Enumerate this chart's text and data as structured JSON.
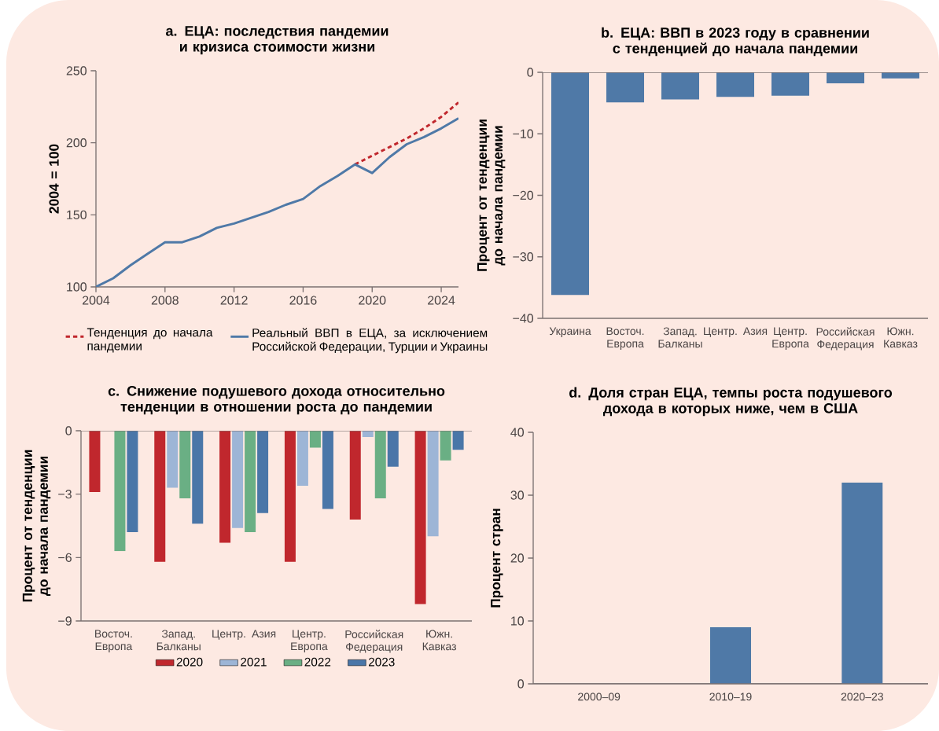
{
  "chart_data": [
    {
      "type": "line",
      "title": "a. ЕЦА: последствия пандемии и кризиса стоимости жизни",
      "ylabel": "2004 = 100",
      "xlim": [
        2004,
        2025
      ],
      "xticks": [
        2004,
        2008,
        2012,
        2016,
        2020,
        2024
      ],
      "ylim": [
        100,
        250
      ],
      "yticks": [
        100,
        150,
        200,
        250
      ],
      "legend": "bottom",
      "series": [
        {
          "name": "Тенденция до начала пандемии",
          "color": "#c0272d",
          "line_style": "dashed",
          "x": [
            2019,
            2020,
            2021,
            2022,
            2023,
            2024,
            2025
          ],
          "values": [
            185,
            191,
            197,
            203,
            210,
            218,
            228
          ]
        },
        {
          "name": "Реальный ВВП в ЕЦА, за исключением Российской Федерации, Турции и Украины",
          "color": "#4f79a7",
          "line_style": "solid",
          "x": [
            2004,
            2005,
            2006,
            2007,
            2008,
            2009,
            2010,
            2011,
            2012,
            2013,
            2014,
            2015,
            2016,
            2017,
            2018,
            2019,
            2020,
            2021,
            2022,
            2023,
            2024,
            2025
          ],
          "values": [
            100,
            106,
            115,
            123,
            131,
            131,
            135,
            141,
            144,
            148,
            152,
            157,
            161,
            170,
            177,
            185,
            179,
            190,
            199,
            204,
            210,
            217
          ]
        }
      ]
    },
    {
      "type": "bar",
      "title": "b. ЕЦА: ВВП в 2023 году в сравнении с тенденцией до начала пандемии",
      "ylabel": "Процент от тенденции до начала пандемии",
      "categories": [
        "Украина",
        "Восточ. Европа",
        "Запад. Балканы",
        "Центр. Азия",
        "Центр. Европа",
        "Российская Федерация",
        "Южн. Кавказ"
      ],
      "values": [
        -36.2,
        -4.9,
        -4.4,
        -4.0,
        -3.8,
        -1.8,
        -1.0
      ],
      "color": "#4f79a7",
      "ylim": [
        -40,
        0
      ],
      "yticks": [
        0,
        {
          "value": -10,
          "label": "−10"
        },
        {
          "value": -20,
          "label": "−20"
        },
        {
          "value": -30,
          "label": "−30"
        },
        {
          "value": -40,
          "label": "−40"
        }
      ]
    },
    {
      "type": "bar",
      "title": "c. Снижение подушевого дохода относительно тенденции в отношении роста до пандемии",
      "ylabel": "Процент от тенденции до начала пандемии",
      "categories": [
        "Восточ. Европа",
        "Запад. Балканы",
        "Центр. Азия",
        "Центр. Европа",
        "Российская Федерация",
        "Южн. Кавказ"
      ],
      "ylim": [
        -9,
        0
      ],
      "yticks": [
        0,
        {
          "value": -3,
          "label": "−3"
        },
        {
          "value": -6,
          "label": "−6"
        },
        {
          "value": -9,
          "label": "−9"
        }
      ],
      "legend": "bottom",
      "series": [
        {
          "name": "2020",
          "color": "#c0272d",
          "values": [
            -2.9,
            -6.2,
            -5.3,
            -6.2,
            -4.2,
            -8.2
          ]
        },
        {
          "name": "2021",
          "color": "#9db5d6",
          "values": [
            0,
            -2.7,
            -4.6,
            -2.6,
            -0.3,
            -5.0
          ]
        },
        {
          "name": "2022",
          "color": "#6aaf84",
          "values": [
            -5.7,
            -3.2,
            -4.8,
            -0.8,
            -3.2,
            -1.4
          ]
        },
        {
          "name": "2023",
          "color": "#4a76a8",
          "values": [
            -4.8,
            -4.4,
            -3.9,
            -3.7,
            -1.7,
            -0.9
          ]
        }
      ]
    },
    {
      "type": "bar",
      "title": "d. Доля стран ЕЦА, темпы роста подушевого дохода в которых ниже, чем в США",
      "ylabel": "Процент стран",
      "categories": [
        "2000–09",
        "2010–19",
        "2020–23"
      ],
      "values": [
        0,
        9,
        32
      ],
      "color": "#4f79a7",
      "ylim": [
        0,
        40
      ],
      "yticks": [
        0,
        10,
        20,
        30,
        40
      ]
    }
  ]
}
